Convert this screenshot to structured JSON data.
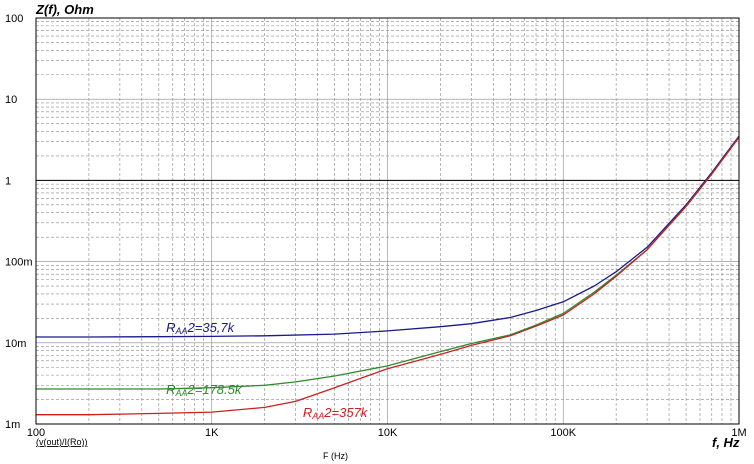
{
  "chart_data": {
    "type": "line",
    "y_title": "Z(f), Ohm",
    "x_title": "f, Hz",
    "x_sublabel": "F (Hz)",
    "trace_label": "(v(out)/I(Ro))",
    "x_scale": "log",
    "y_scale": "log",
    "xlim": [
      100,
      1000000
    ],
    "ylim": [
      0.001,
      100
    ],
    "x_ticks": [
      {
        "value": 100,
        "label": "100"
      },
      {
        "value": 1000,
        "label": "1K"
      },
      {
        "value": 10000,
        "label": "10K"
      },
      {
        "value": 100000,
        "label": "100K"
      },
      {
        "value": 1000000,
        "label": "1M"
      }
    ],
    "y_ticks": [
      {
        "value": 100,
        "label": "100"
      },
      {
        "value": 10,
        "label": "10"
      },
      {
        "value": 1,
        "label": "1"
      },
      {
        "value": 0.1,
        "label": "100m"
      },
      {
        "value": 0.01,
        "label": "10m"
      },
      {
        "value": 0.001,
        "label": "1m"
      }
    ],
    "grid": true,
    "reference_line": {
      "y": 1,
      "color": "#000000"
    },
    "series": [
      {
        "name": "RAA2=35,7k",
        "label_main": "R",
        "label_sub": "AA",
        "label_rest": "2=35,7k",
        "color": "#1a1a8c",
        "label_at": {
          "x": 550,
          "y": 0.0135
        },
        "x": [
          100,
          200,
          500,
          1000,
          2000,
          5000,
          10000,
          20000,
          30000,
          50000,
          70000,
          100000,
          150000,
          200000,
          300000,
          500000,
          700000,
          1000000
        ],
        "y": [
          0.0118,
          0.0118,
          0.0119,
          0.012,
          0.0122,
          0.0128,
          0.014,
          0.0158,
          0.0172,
          0.0205,
          0.025,
          0.032,
          0.05,
          0.075,
          0.15,
          0.5,
          1.25,
          3.5
        ]
      },
      {
        "name": "RAA2=178.5k",
        "label_main": "R",
        "label_sub": "AA",
        "label_rest": "2=178.5k",
        "color": "#2e8b2e",
        "label_at": {
          "x": 550,
          "y": 0.00235
        },
        "x": [
          100,
          200,
          500,
          1000,
          2000,
          3000,
          5000,
          10000,
          20000,
          30000,
          50000,
          70000,
          100000,
          150000,
          200000,
          300000,
          500000,
          700000,
          1000000
        ],
        "y": [
          0.0027,
          0.0027,
          0.0027,
          0.0028,
          0.003,
          0.0033,
          0.0039,
          0.0052,
          0.0078,
          0.0098,
          0.0125,
          0.0165,
          0.023,
          0.042,
          0.068,
          0.14,
          0.48,
          1.2,
          3.4
        ]
      },
      {
        "name": "RAA2=357k",
        "label_main": "R",
        "label_sub": "AA",
        "label_rest": "2=357k",
        "color": "#cc2020",
        "label_at": {
          "x": 3300,
          "y": 0.00122
        },
        "x": [
          100,
          200,
          500,
          1000,
          2000,
          3000,
          5000,
          10000,
          20000,
          30000,
          50000,
          70000,
          100000,
          150000,
          200000,
          300000,
          500000,
          700000,
          1000000
        ],
        "y": [
          0.0013,
          0.0013,
          0.00135,
          0.0014,
          0.0016,
          0.0019,
          0.0028,
          0.0048,
          0.0072,
          0.0093,
          0.0122,
          0.016,
          0.022,
          0.04,
          0.066,
          0.14,
          0.48,
          1.2,
          3.4
        ]
      }
    ]
  }
}
